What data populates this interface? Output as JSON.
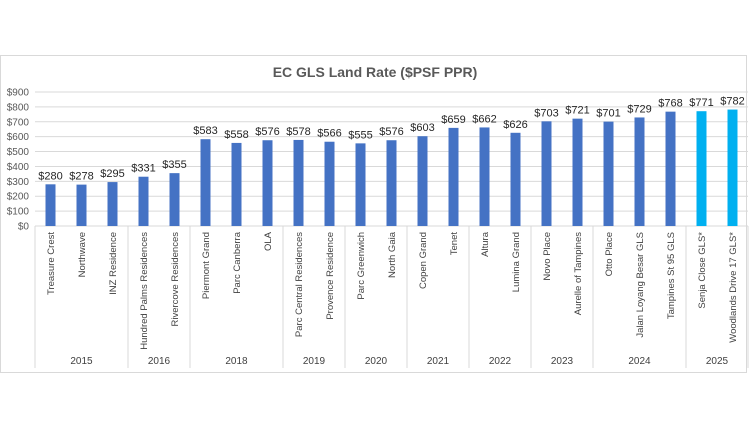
{
  "chart_data": {
    "type": "bar",
    "title": "EC GLS Land Rate ($PSF PPR)",
    "xlabel": "",
    "ylabel": "",
    "ylim": [
      0,
      900
    ],
    "y_ticks": [
      "$0",
      "$100",
      "$200",
      "$300",
      "$400",
      "$500",
      "$600",
      "$700",
      "$800",
      "$900"
    ],
    "y_tick_values": [
      0,
      100,
      200,
      300,
      400,
      500,
      600,
      700,
      800,
      900
    ],
    "grid": true,
    "legend": "none",
    "categories": [
      "Treasure Crest",
      "Northwave",
      "INZ Residence",
      "Hundred Palms Residences",
      "Rivercove Residences",
      "Piermont Grand",
      "Parc Canberra",
      "OLA",
      "Parc Central Residences",
      "Provence Residence",
      "Parc Greenwich",
      "North Gaia",
      "Copen Grand",
      "Tenet",
      "Altura",
      "Lumina Grand",
      "Novo Place",
      "Aurelle of Tampines",
      "Otto Place",
      "Jalan Loyang Besar GLS",
      "Tampines St 95 GLS",
      "Senja Close GLS*",
      "Woodlands Drive 17 GLS*"
    ],
    "values": [
      280,
      278,
      295,
      331,
      355,
      583,
      558,
      576,
      578,
      566,
      555,
      576,
      603,
      659,
      662,
      626,
      703,
      721,
      701,
      729,
      768,
      771,
      782
    ],
    "data_labels": [
      "$280",
      "$278",
      "$295",
      "$331",
      "$355",
      "$583",
      "$558",
      "$576",
      "$578",
      "$566",
      "$555",
      "$576",
      "$603",
      "$659",
      "$662",
      "$626",
      "$703",
      "$721",
      "$701",
      "$729",
      "$768",
      "$771",
      "$782"
    ],
    "highlight": [
      false,
      false,
      false,
      false,
      false,
      false,
      false,
      false,
      false,
      false,
      false,
      false,
      false,
      false,
      false,
      false,
      false,
      false,
      false,
      false,
      false,
      true,
      true
    ],
    "groups": [
      {
        "label": "2015",
        "count": 3
      },
      {
        "label": "2016",
        "count": 2
      },
      {
        "label": "2018",
        "count": 3
      },
      {
        "label": "2019",
        "count": 2
      },
      {
        "label": "2020",
        "count": 2
      },
      {
        "label": "2021",
        "count": 2
      },
      {
        "label": "2022",
        "count": 2
      },
      {
        "label": "2023",
        "count": 2
      },
      {
        "label": "2024",
        "count": 3
      },
      {
        "label": "2025",
        "count": 2
      }
    ],
    "colors": {
      "bar": "#4472c4",
      "highlight": "#00b0f0",
      "grid": "#d9d9d9"
    }
  }
}
